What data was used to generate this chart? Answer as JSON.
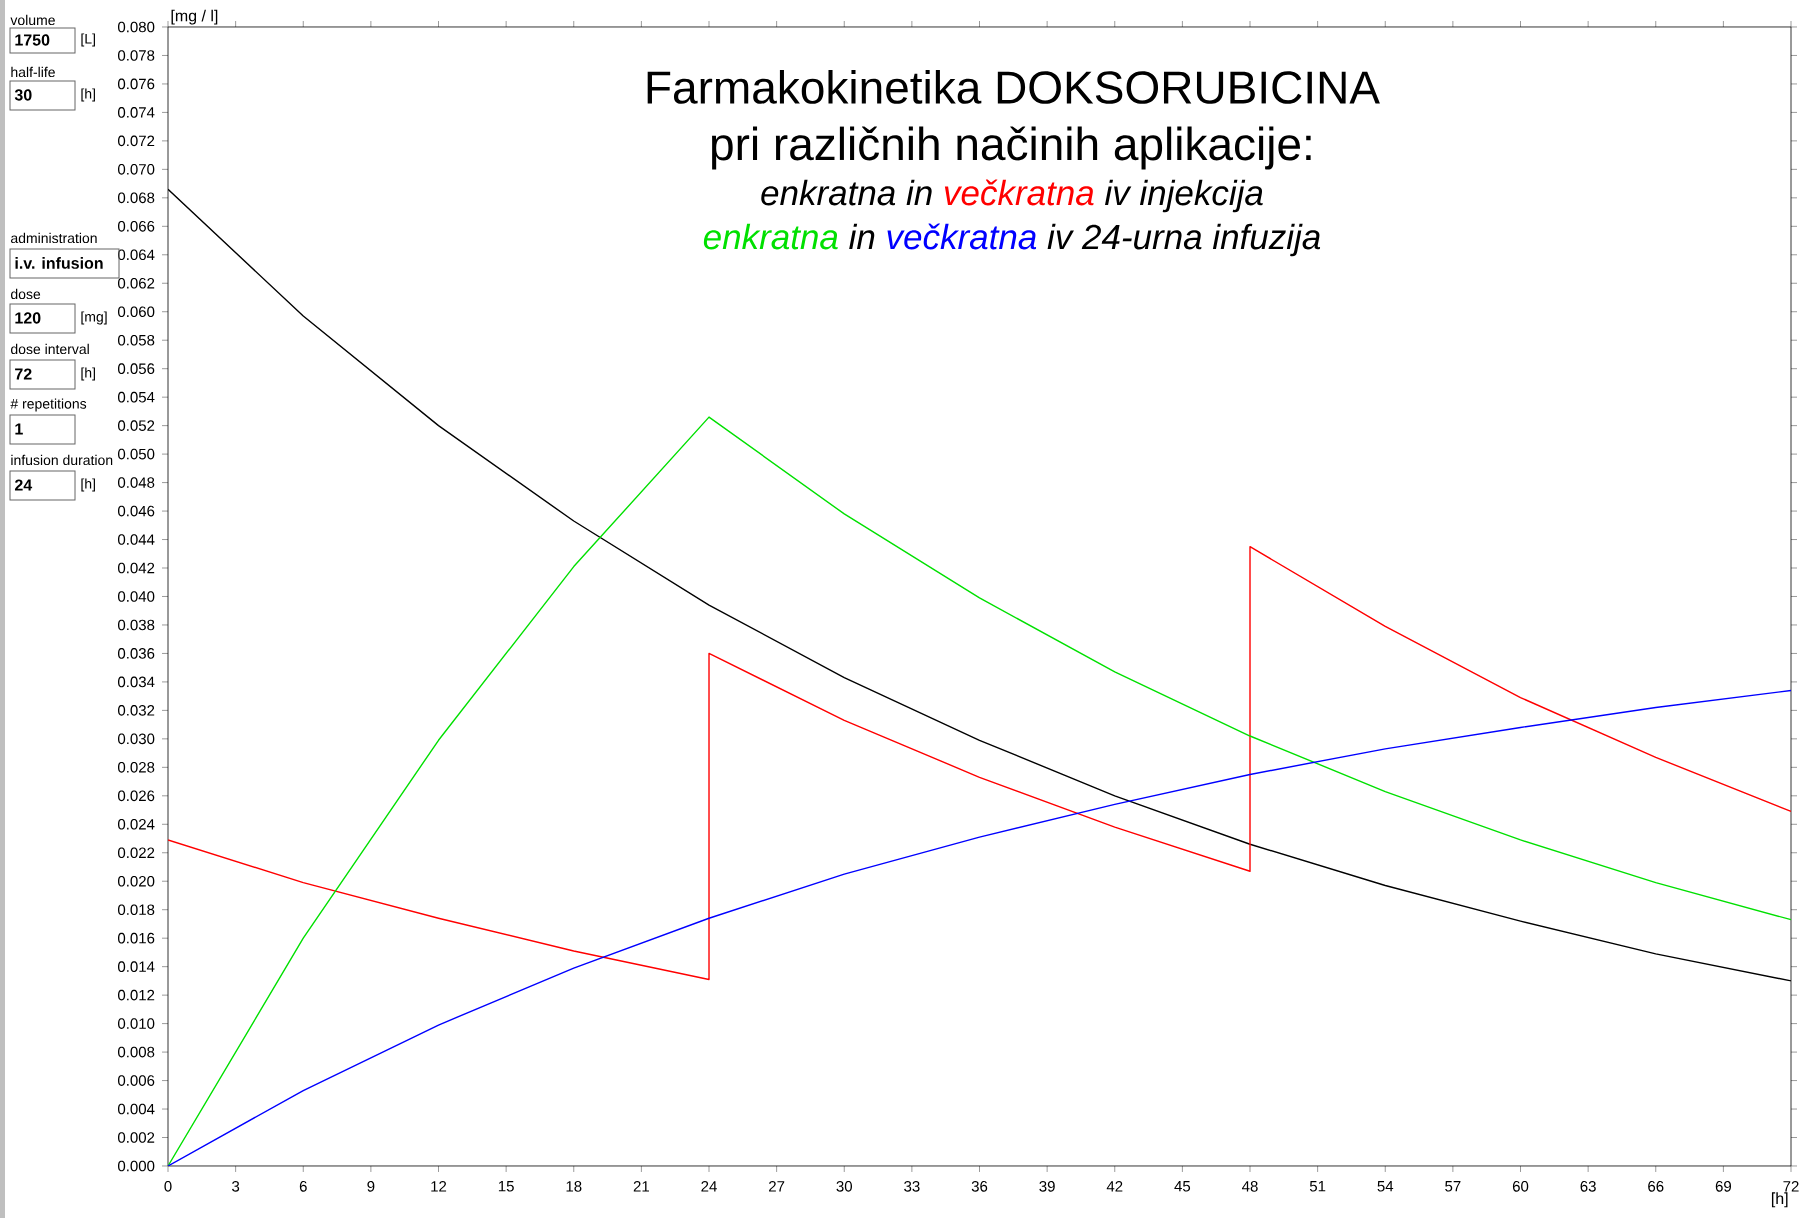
{
  "chart_data": {
    "type": "line",
    "title": "Farmakokinetika DOKSORUBICINA",
    "subtitle": "pri različnih načinih aplikacije:",
    "ylabel": "[mg / l]",
    "xlabel": "[h]",
    "xlim": [
      0,
      72
    ],
    "xticks": [
      0,
      3,
      6,
      9,
      12,
      15,
      18,
      21,
      24,
      27,
      30,
      33,
      36,
      39,
      42,
      45,
      48,
      51,
      54,
      57,
      60,
      63,
      66,
      69,
      72
    ],
    "ylim": [
      0,
      0.08
    ],
    "yticks": [
      {
        "value": 0,
        "label": "0.000"
      },
      {
        "value": 0.002,
        "label": "0.002"
      },
      {
        "value": 0.004,
        "label": "0.004"
      },
      {
        "value": 0.006,
        "label": "0.006"
      },
      {
        "value": 0.008,
        "label": "0.008"
      },
      {
        "value": 0.01,
        "label": "0.010"
      },
      {
        "value": 0.012,
        "label": "0.012"
      },
      {
        "value": 0.014,
        "label": "0.014"
      },
      {
        "value": 0.016,
        "label": "0.016"
      },
      {
        "value": 0.018,
        "label": "0.018"
      },
      {
        "value": 0.02,
        "label": "0.020"
      },
      {
        "value": 0.022,
        "label": "0.022"
      },
      {
        "value": 0.024,
        "label": "0.024"
      },
      {
        "value": 0.026,
        "label": "0.026"
      },
      {
        "value": 0.028,
        "label": "0.028"
      },
      {
        "value": 0.03,
        "label": "0.030"
      },
      {
        "value": 0.032,
        "label": "0.032"
      },
      {
        "value": 0.034,
        "label": "0.034"
      },
      {
        "value": 0.036,
        "label": "0.036"
      },
      {
        "value": 0.038,
        "label": "0.038"
      },
      {
        "value": 0.04,
        "label": "0.040"
      },
      {
        "value": 0.042,
        "label": "0.042"
      },
      {
        "value": 0.044,
        "label": "0.044"
      },
      {
        "value": 0.046,
        "label": "0.046"
      },
      {
        "value": 0.048,
        "label": "0.048"
      },
      {
        "value": 0.05,
        "label": "0.050"
      },
      {
        "value": 0.052,
        "label": "0.052"
      },
      {
        "value": 0.054,
        "label": "0.054"
      },
      {
        "value": 0.056,
        "label": "0.056"
      },
      {
        "value": 0.058,
        "label": "0.058"
      },
      {
        "value": 0.06,
        "label": "0.060"
      },
      {
        "value": 0.062,
        "label": "0.062"
      },
      {
        "value": 0.064,
        "label": "0.064"
      },
      {
        "value": 0.066,
        "label": "0.066"
      },
      {
        "value": 0.068,
        "label": "0.068"
      },
      {
        "value": 0.07,
        "label": "0.070"
      },
      {
        "value": 0.072,
        "label": "0.072"
      },
      {
        "value": 0.074,
        "label": "0.074"
      },
      {
        "value": 0.076,
        "label": "0.076"
      },
      {
        "value": 0.078,
        "label": "0.078"
      },
      {
        "value": 0.08,
        "label": "0.080"
      }
    ],
    "grid": false,
    "line_style": "solid",
    "series": [
      {
        "name": "enkratna",
        "color": "#000000",
        "x": [
          0,
          6,
          12,
          18,
          24,
          30,
          36,
          42,
          48,
          54,
          60,
          66,
          72
        ],
        "values": [
          0.0686,
          0.0597,
          0.052,
          0.0453,
          0.0394,
          0.0343,
          0.0299,
          0.026,
          0.0226,
          0.0197,
          0.0172,
          0.0149,
          0.013
        ]
      },
      {
        "name": "večkratna",
        "color": "#ff0000",
        "x": [
          0,
          6,
          12,
          18,
          24,
          24,
          30,
          36,
          42,
          48,
          48,
          54,
          60,
          66,
          72
        ],
        "values": [
          0.0229,
          0.0199,
          0.0174,
          0.0151,
          0.0131,
          0.036,
          0.0313,
          0.0273,
          0.0238,
          0.0207,
          0.0435,
          0.0379,
          0.0329,
          0.0287,
          0.0249
        ]
      },
      {
        "name": "enkratna",
        "color": "#00e000",
        "x": [
          0,
          6,
          12,
          18,
          24,
          30,
          36,
          42,
          48,
          54,
          60,
          66,
          72
        ],
        "values": [
          0,
          0.016,
          0.0299,
          0.0421,
          0.0526,
          0.0458,
          0.0399,
          0.0347,
          0.0302,
          0.0263,
          0.0229,
          0.0199,
          0.0173
        ]
      },
      {
        "name": "večkratna",
        "color": "#0000ff",
        "x": [
          0,
          6,
          12,
          18,
          24,
          30,
          36,
          42,
          48,
          54,
          60,
          66,
          72
        ],
        "values": [
          0,
          0.0053,
          0.0099,
          0.0139,
          0.0174,
          0.0205,
          0.0231,
          0.0254,
          0.0275,
          0.0293,
          0.0308,
          0.0322,
          0.0334
        ]
      }
    ],
    "annotations": [
      "in",
      "iv injekcija",
      "in",
      "iv 24-urna infuzija",
      "volume",
      "1750",
      "[L]",
      "half-life",
      "30",
      "[h]",
      "administration",
      "i.v. infusion",
      "dose",
      "120",
      "[mg]",
      "dose interval",
      "72",
      "[h]",
      "# repetitions",
      "1",
      "infusion duration",
      "24",
      "[h]"
    ]
  }
}
